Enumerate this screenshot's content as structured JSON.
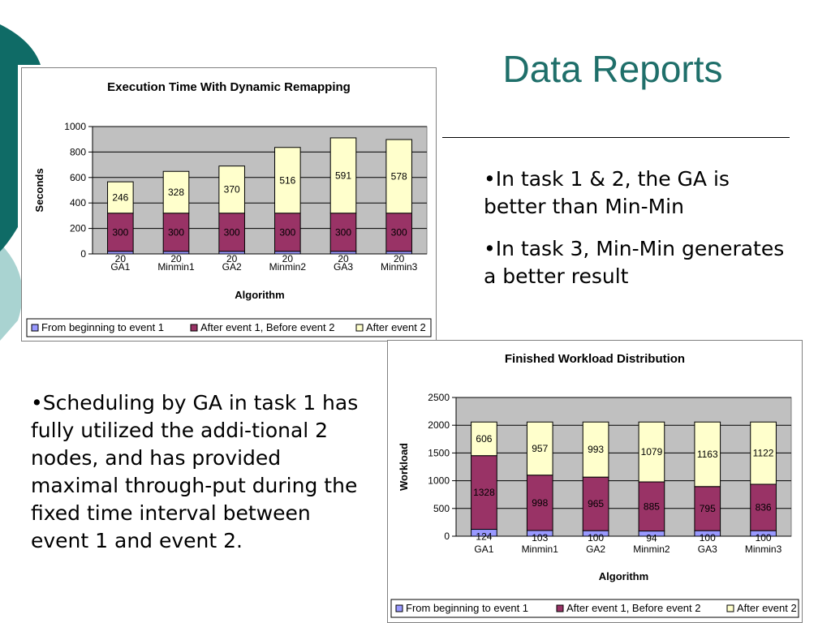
{
  "slide": {
    "title": "Data Reports",
    "bullets_right": [
      "•In task 1 & 2, the GA is better than Min-Min",
      "•In task 3, Min-Min generates a better result"
    ],
    "bullet_left": "•Scheduling by GA in task 1 has fully utilized the addi-tional 2 nodes, and has provided maximal through-put during the fixed time interval between event 1 and event 2.",
    "colors": {
      "title": "#1f6f6a",
      "deco_dark": "#0f6b66",
      "deco_light": "#a9d3d1"
    }
  },
  "chart_data": [
    {
      "type": "bar",
      "stacked": true,
      "title": "Execution Time With Dynamic Remapping",
      "xlabel": "Algorithm",
      "ylabel": "Seconds",
      "ylim": [
        0,
        1000
      ],
      "yticks": [
        0,
        200,
        400,
        600,
        800,
        1000
      ],
      "categories": [
        "GA1",
        "Minmin1",
        "GA2",
        "Minmin2",
        "GA3",
        "Minmin3"
      ],
      "series": [
        {
          "name": "From beginning to event 1",
          "color": "#9999ff",
          "values": [
            20,
            20,
            20,
            20,
            20,
            20
          ],
          "labels": [
            "20",
            "20",
            "20",
            "20",
            "20",
            "20"
          ]
        },
        {
          "name": "After event 1, Before event 2",
          "color": "#993366",
          "values": [
            300,
            300,
            300,
            300,
            300,
            300
          ],
          "labels": [
            "300",
            "300",
            "300",
            "300",
            "300",
            "300"
          ]
        },
        {
          "name": "After event 2",
          "color": "#ffffcc",
          "values": [
            246,
            328,
            370,
            516,
            591,
            578
          ],
          "labels": [
            "246",
            "328",
            "370",
            "516",
            "591",
            "578"
          ]
        }
      ],
      "grid": true,
      "legend": "bottom",
      "plot_background": "#c0c0c0"
    },
    {
      "type": "bar",
      "stacked": true,
      "title": "Finished Workload Distribution",
      "xlabel": "Algorithm",
      "ylabel": "Workload",
      "ylim": [
        0,
        2500
      ],
      "yticks": [
        0,
        500,
        1000,
        1500,
        2000,
        2500
      ],
      "categories": [
        "GA1",
        "Minmin1",
        "GA2",
        "Minmin2",
        "GA3",
        "Minmin3"
      ],
      "series": [
        {
          "name": "From beginning to event 1",
          "color": "#9999ff",
          "values": [
            124,
            103,
            100,
            94,
            100,
            100
          ],
          "labels": [
            "124",
            "103",
            "100",
            "94",
            "100",
            "100"
          ]
        },
        {
          "name": "After event 1, Before event 2",
          "color": "#993366",
          "values": [
            1328,
            998,
            965,
            885,
            795,
            836
          ],
          "labels": [
            "1328",
            "998",
            "965",
            "885",
            "795",
            "836"
          ]
        },
        {
          "name": "After event 2",
          "color": "#ffffcc",
          "values": [
            606,
            957,
            993,
            1079,
            1163,
            1122
          ],
          "labels": [
            "606",
            "957",
            "993",
            "1079",
            "1163",
            "1122"
          ]
        }
      ],
      "grid": true,
      "legend": "bottom",
      "plot_background": "#c0c0c0"
    }
  ]
}
